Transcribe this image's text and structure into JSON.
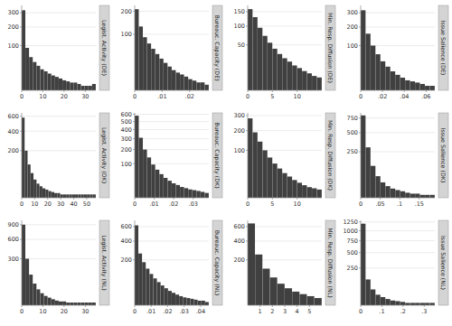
{
  "chart_data": [
    {
      "type": "bar",
      "title": "Legist. Activity (DE)",
      "values": [
        320,
        90,
        55,
        40,
        30,
        22,
        18,
        14,
        11,
        9,
        7,
        5,
        4,
        3,
        3,
        2,
        1,
        1,
        1,
        2
      ],
      "color": "#404040",
      "xlim": [
        0,
        35
      ],
      "xticks": [
        0,
        10,
        20,
        30
      ],
      "ylim": [
        0,
        360
      ],
      "yticks": [
        100,
        200,
        300
      ],
      "grid": true
    },
    {
      "type": "bar",
      "title": "Bureauc. Capacity (DE)",
      "values": [
        210,
        130,
        90,
        70,
        55,
        42,
        32,
        24,
        18,
        13,
        10,
        8,
        6,
        4,
        3,
        2,
        2,
        1
      ],
      "color": "#404040",
      "xlim": [
        0,
        0.027
      ],
      "xticks": [
        0,
        {
          "value": 0.01,
          "label": ".01"
        },
        {
          "value": 0.02,
          "label": ".02"
        }
      ],
      "ylim": [
        0,
        230
      ],
      "yticks": [
        100,
        200
      ],
      "grid": true
    },
    {
      "type": "bar",
      "title": "Min. Resp. Diffusion (DE)",
      "values": [
        160,
        130,
        95,
        72,
        55,
        42,
        32,
        25,
        20,
        15,
        12,
        9,
        7,
        5,
        4
      ],
      "color": "#404040",
      "xlim": [
        0,
        15
      ],
      "xticks": [
        0,
        5,
        10
      ],
      "ylim": [
        0,
        175
      ],
      "yticks": [
        50,
        100,
        150
      ],
      "grid": true
    },
    {
      "type": "bar",
      "title": "Issue Salience (DE)",
      "values": [
        320,
        160,
        100,
        65,
        42,
        28,
        18,
        12,
        8,
        5,
        4,
        3,
        2,
        1,
        1
      ],
      "color": "#404040",
      "xlim": [
        0,
        0.068
      ],
      "xticks": [
        0,
        {
          "value": 0.02,
          "label": ".02"
        },
        {
          "value": 0.04,
          "label": ".04"
        },
        {
          "value": 0.06,
          "label": ".06"
        }
      ],
      "ylim": [
        0,
        360
      ],
      "yticks": [
        100,
        200,
        300
      ],
      "grid": true
    },
    {
      "type": "bar",
      "title": "Legist. Activity (DK)",
      "values": [
        580,
        200,
        100,
        55,
        30,
        18,
        12,
        8,
        6,
        4,
        3,
        2,
        2,
        1,
        1,
        1,
        1,
        1,
        1,
        1,
        1,
        1,
        1,
        1,
        1
      ],
      "color": "#404040",
      "xlim": [
        0,
        57
      ],
      "xticks": [
        0,
        10,
        20,
        30,
        40,
        50
      ],
      "ylim": [
        0,
        650
      ],
      "yticks": [
        200,
        400,
        600
      ],
      "grid": true
    },
    {
      "type": "bar",
      "title": "Bureauc. Capacity (DK)",
      "values": [
        580,
        310,
        200,
        140,
        95,
        68,
        48,
        34,
        25,
        18,
        14,
        10,
        8,
        6,
        5,
        4,
        3,
        2
      ],
      "color": "#404040",
      "xlim": [
        0,
        0.038
      ],
      "xticks": [
        0,
        {
          "value": 0.01,
          "label": ".01"
        },
        {
          "value": 0.02,
          "label": ".02"
        },
        {
          "value": 0.03,
          "label": ".03"
        }
      ],
      "ylim": [
        0,
        620
      ],
      "yticks": [
        100,
        200,
        300,
        400,
        500,
        600
      ],
      "grid": true
    },
    {
      "type": "bar",
      "title": "Min. Resp. Diffusion (DK)",
      "values": [
        280,
        190,
        140,
        100,
        72,
        52,
        38,
        27,
        20,
        14,
        10,
        7,
        5,
        4,
        3
      ],
      "color": "#404040",
      "xlim": [
        0,
        15
      ],
      "xticks": [
        0,
        5,
        10
      ],
      "ylim": [
        0,
        320
      ],
      "yticks": [
        100,
        200,
        300
      ],
      "grid": true
    },
    {
      "type": "bar",
      "title": "Issue Salience (DK)",
      "values": [
        800,
        300,
        120,
        55,
        28,
        16,
        10,
        7,
        5,
        3,
        2,
        2,
        1,
        1,
        1
      ],
      "color": "#404040",
      "xlim": [
        0,
        0.19
      ],
      "xticks": [
        0,
        {
          "value": 0.05,
          "label": ".05"
        },
        {
          "value": 0.1,
          "label": ".1"
        },
        {
          "value": 0.15,
          "label": ".15"
        }
      ],
      "ylim": [
        0,
        850
      ],
      "yticks": [
        250,
        500,
        750
      ],
      "grid": true
    },
    {
      "type": "bar",
      "title": "Legist. Activity (NL)",
      "values": [
        900,
        300,
        130,
        65,
        35,
        20,
        12,
        8,
        5,
        3,
        2,
        2,
        1,
        1,
        1,
        1,
        1,
        1,
        1,
        1
      ],
      "color": "#404040",
      "xlim": [
        0,
        35
      ],
      "xticks": [
        0,
        10,
        20,
        30
      ],
      "ylim": [
        0,
        1000
      ],
      "yticks": [
        300,
        600,
        900
      ],
      "grid": true
    },
    {
      "type": "bar",
      "title": "Bureauc. Capacity (NL)",
      "values": [
        620,
        260,
        180,
        130,
        95,
        70,
        52,
        38,
        28,
        20,
        15,
        11,
        8,
        6,
        5,
        4,
        3,
        2,
        2,
        1
      ],
      "color": "#404040",
      "xlim": [
        0,
        0.045
      ],
      "xticks": [
        0,
        {
          "value": 0.01,
          "label": ".01"
        },
        {
          "value": 0.02,
          "label": ".02"
        },
        {
          "value": 0.03,
          "label": ".03"
        },
        {
          "value": 0.04,
          "label": ".04"
        }
      ],
      "ylim": [
        0,
        700
      ],
      "yticks": [
        200,
        400,
        600
      ],
      "grid": true
    },
    {
      "type": "bar",
      "title": "Min. Resp. Diffusion (NL)",
      "values": [
        650,
        250,
        130,
        75,
        45,
        28,
        18,
        12,
        8,
        5
      ],
      "color": "#404040",
      "xlim": [
        0,
        6
      ],
      "xticks": [
        1,
        2,
        3,
        4,
        5
      ],
      "ylim": [
        0,
        700
      ],
      "yticks": [
        200,
        400,
        600
      ],
      "grid": true
    },
    {
      "type": "bar",
      "title": "Issue Salience (NL)",
      "values": [
        1200,
        120,
        45,
        20,
        12,
        7,
        4,
        3,
        2,
        1,
        1,
        1,
        1,
        1,
        1
      ],
      "color": "#404040",
      "xlim": [
        0,
        0.35
      ],
      "xticks": [
        0,
        {
          "value": 0.1,
          "label": ".1"
        },
        {
          "value": 0.2,
          "label": ".2"
        },
        {
          "value": 0.3,
          "label": ".3"
        }
      ],
      "ylim": [
        0,
        1300
      ],
      "yticks": [
        250,
        500,
        750,
        1000,
        1250
      ],
      "grid": true
    }
  ]
}
